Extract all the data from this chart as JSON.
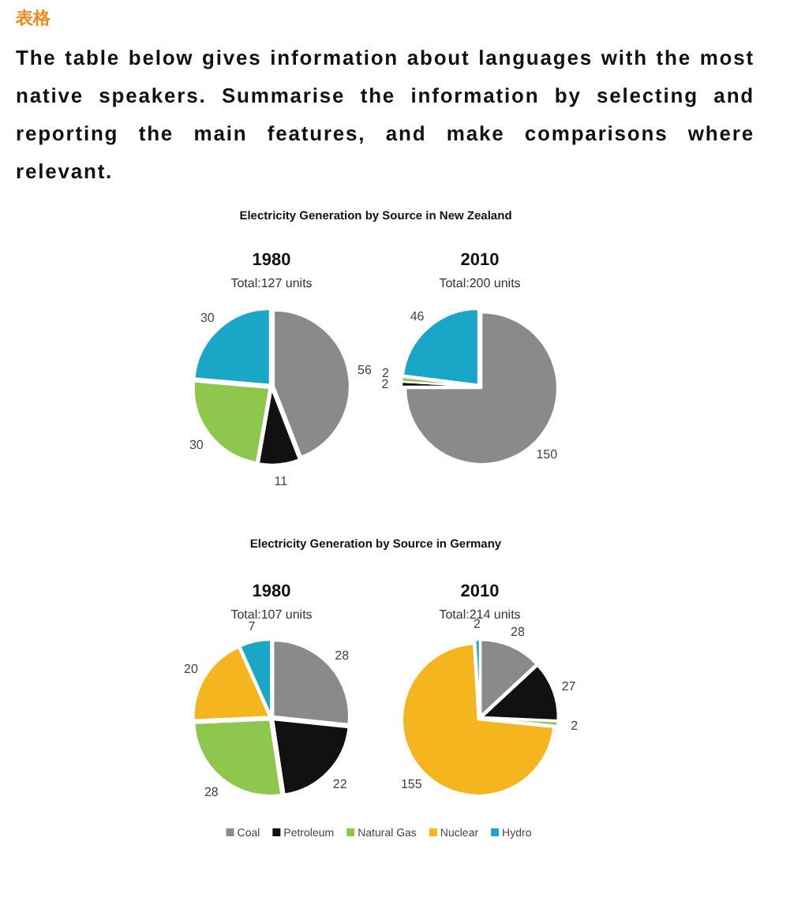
{
  "chart_data": [
    {
      "type": "pie",
      "title": "1980",
      "subtitle": "Total:127 units",
      "annotations": [
        "表格",
        "The table below gives information about languages with the most native speakers. Summarise the information by selecting and reporting the main features, and make comparisons where relevant.",
        "Electricity Generation by Source in New Zealand"
      ],
      "categories": [
        null,
        null,
        null,
        null
      ],
      "values": [
        56,
        11,
        30,
        30
      ],
      "value_labels": [
        "56",
        "11",
        "30",
        "30"
      ],
      "colors": [
        "#8a8a8a",
        "#111111",
        "#8fc64e",
        "#1aa6c6"
      ]
    },
    {
      "type": "pie",
      "title": "2010",
      "subtitle": "Total:200 units",
      "categories": [
        null,
        null,
        null,
        null
      ],
      "values": [
        150,
        2,
        2,
        46
      ],
      "value_labels": [
        "150",
        "2",
        "2",
        "46"
      ],
      "colors": [
        "#8a8a8a",
        "#111111",
        "#8fc64e",
        "#1aa6c6"
      ]
    },
    {
      "type": "pie",
      "title": "1980",
      "subtitle": "Total:107 units",
      "annotations": [
        "Electricity Generation by Source in Germany"
      ],
      "categories": [
        null,
        null,
        null,
        null,
        null
      ],
      "values": [
        28,
        22,
        28,
        20,
        7
      ],
      "value_labels": [
        "28",
        "22",
        "28",
        "20",
        "7"
      ],
      "colors": [
        "#8a8a8a",
        "#111111",
        "#8fc64e",
        "#f4b51e",
        "#1aa6c6"
      ]
    },
    {
      "type": "pie",
      "title": "2010",
      "subtitle": "Total:214 units",
      "legend": "bottom",
      "categories": [
        "Coal",
        "Petroleum",
        "Natural Gas",
        "Nuclear",
        "Hydro"
      ],
      "values": [
        28,
        27,
        2,
        155,
        2
      ],
      "value_labels": [
        "28",
        "27",
        "2",
        "155",
        "2"
      ],
      "colors": [
        "#8a8a8a",
        "#111111",
        "#8fc64e",
        "#f4b51e",
        "#1aa6c6"
      ]
    }
  ]
}
